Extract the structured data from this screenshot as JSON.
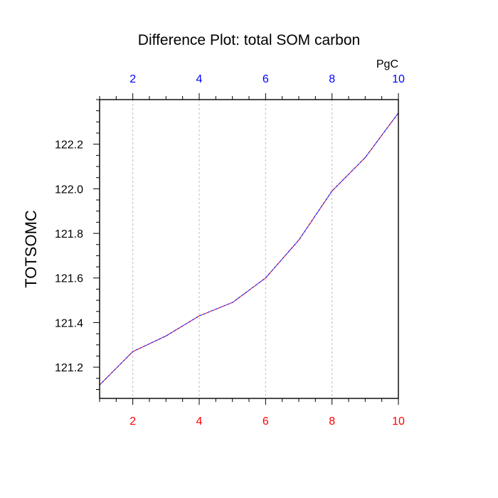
{
  "chart_data": {
    "type": "line",
    "title": "Difference Plot: total SOM carbon",
    "units_label": "PgC",
    "ylabel": "TOTSOMC",
    "xlabel": "",
    "xlim": [
      1,
      10
    ],
    "ylim": [
      121.06,
      122.4
    ],
    "x_major_ticks": [
      2,
      4,
      6,
      8,
      10
    ],
    "y_major_ticks": [
      121.2,
      121.4,
      121.6,
      121.8,
      122.0,
      122.2
    ],
    "y_tick_labels": [
      "121.2",
      "121.4",
      "121.6",
      "121.8",
      "122.0",
      "122.2"
    ],
    "grid": "vertical dashed at major x ticks",
    "x_bottom_tick_color": "#ff0000",
    "x_top_tick_color": "#0000ff",
    "series": [
      {
        "colors": [
          "#ff0000",
          "#0000ff"
        ],
        "style": "dashed",
        "x": [
          1,
          2,
          3,
          4,
          5,
          6,
          7,
          8,
          9,
          10
        ],
        "y": [
          121.12,
          121.27,
          121.34,
          121.43,
          121.49,
          121.6,
          121.77,
          121.99,
          122.14,
          122.34
        ]
      }
    ]
  }
}
